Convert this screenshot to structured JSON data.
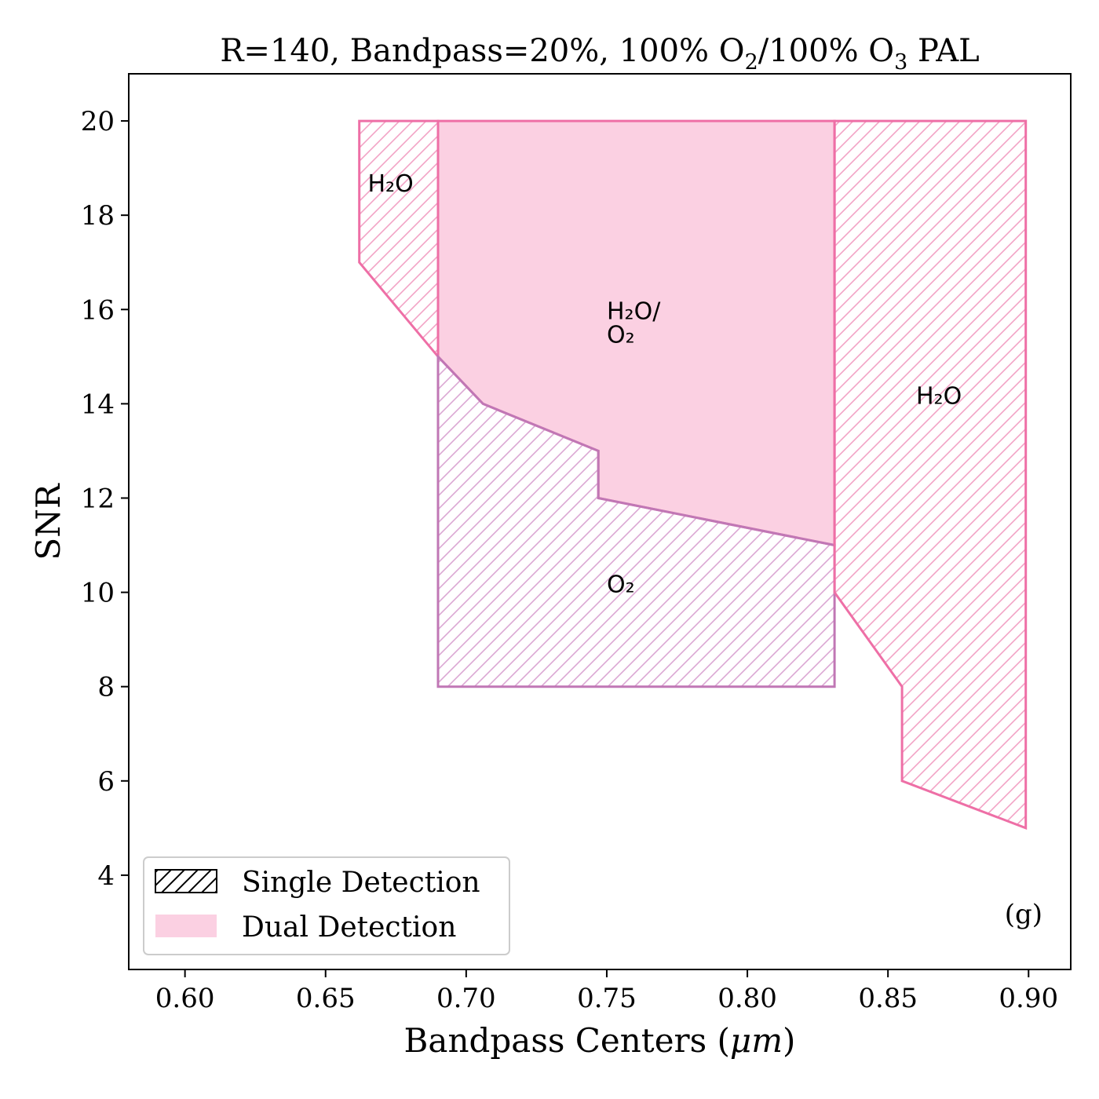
{
  "chart_data": {
    "type": "area",
    "title": "R=140, Bandpass=20%, 100% O₂/100% O₃ PAL",
    "xlabel": "Bandpass Centers (μm)",
    "ylabel": "SNR",
    "xlim": [
      0.58,
      0.915
    ],
    "ylim": [
      2,
      21
    ],
    "x_ticks": [
      0.6,
      0.65,
      0.7,
      0.75,
      0.8,
      0.85,
      0.9
    ],
    "x_tick_labels": [
      "0.60",
      "0.65",
      "0.70",
      "0.75",
      "0.80",
      "0.85",
      "0.90"
    ],
    "y_ticks": [
      4,
      6,
      8,
      10,
      12,
      14,
      16,
      18,
      20
    ],
    "y_tick_labels": [
      "4",
      "6",
      "8",
      "10",
      "12",
      "14",
      "16",
      "18",
      "20"
    ],
    "grid": false,
    "panel_label": "(g)",
    "legend": {
      "placement": "bottom-left",
      "entries": [
        {
          "label": "Single Detection",
          "style": "hatch"
        },
        {
          "label": "Dual Detection",
          "style": "fill"
        }
      ]
    },
    "colors": {
      "h2o_edge": "#ee6fa6",
      "o2_edge": "#c077b5",
      "dual_fill": "#fbd0e2",
      "h2o_hatch": "#f2a3c5",
      "o2_hatch": "#dba7d3"
    },
    "regions": [
      {
        "label": "H₂O",
        "kind": "single",
        "edge": "h2o_edge",
        "hatch": "h2o_hatch",
        "label_at": [
          0.665,
          18.5
        ],
        "points": [
          [
            0.662,
            20
          ],
          [
            0.69,
            20
          ],
          [
            0.69,
            15
          ],
          [
            0.662,
            17
          ]
        ]
      },
      {
        "label": "H₂O/\nO₂",
        "kind": "dual",
        "edge": "h2o_edge",
        "label_at": [
          0.75,
          15.8
        ],
        "points": [
          [
            0.69,
            20
          ],
          [
            0.831,
            20
          ],
          [
            0.831,
            11
          ],
          [
            0.747,
            12
          ],
          [
            0.747,
            13
          ],
          [
            0.706,
            14
          ],
          [
            0.69,
            15
          ]
        ]
      },
      {
        "label": "O₂",
        "kind": "single",
        "edge": "o2_edge",
        "hatch": "o2_hatch",
        "label_at": [
          0.75,
          10.0
        ],
        "points": [
          [
            0.69,
            15
          ],
          [
            0.706,
            14
          ],
          [
            0.747,
            13
          ],
          [
            0.747,
            12
          ],
          [
            0.831,
            11
          ],
          [
            0.831,
            8
          ],
          [
            0.69,
            8
          ]
        ]
      },
      {
        "label": "H₂O",
        "kind": "single",
        "edge": "h2o_edge",
        "hatch": "h2o_hatch",
        "label_at": [
          0.86,
          14.0
        ],
        "points": [
          [
            0.831,
            20
          ],
          [
            0.899,
            20
          ],
          [
            0.899,
            5
          ],
          [
            0.855,
            6
          ],
          [
            0.855,
            8
          ],
          [
            0.831,
            10
          ]
        ]
      }
    ]
  }
}
